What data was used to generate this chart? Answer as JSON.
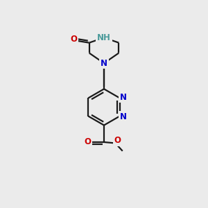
{
  "bg_color": "#ebebeb",
  "bond_color": "#1a1a1a",
  "n_color": "#0000cc",
  "o_color": "#cc0000",
  "nh_color": "#4a9a9a",
  "line_width": 1.6,
  "font_size_atom": 8.5,
  "fig_size": [
    3.0,
    3.0
  ],
  "dpi": 100,
  "xlim": [
    0,
    10
  ],
  "ylim": [
    0,
    10
  ]
}
